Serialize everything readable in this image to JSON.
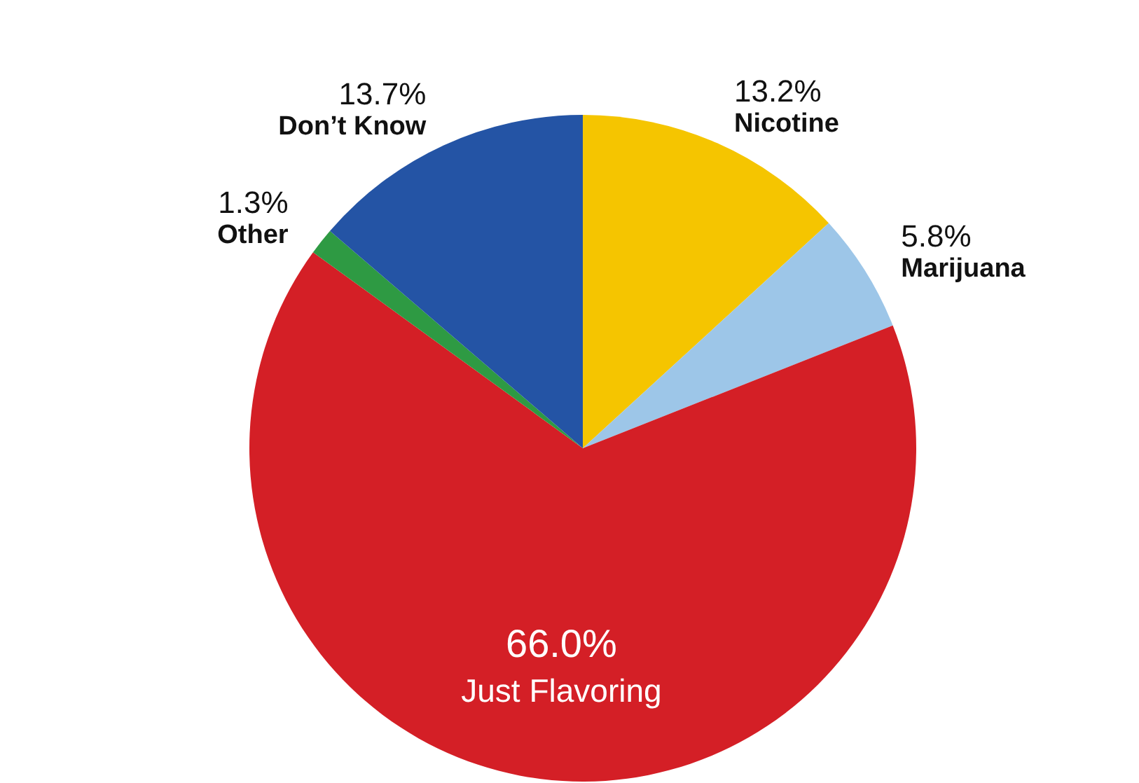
{
  "chart_data": {
    "type": "pie",
    "categories": [
      "Nicotine",
      "Marijuana",
      "Just Flavoring",
      "Other",
      "Don’t Know"
    ],
    "values": [
      13.2,
      5.8,
      66.0,
      1.3,
      13.7
    ],
    "colors": [
      "#f5c500",
      "#9dc6e8",
      "#d41f26",
      "#2e9a43",
      "#2454a5"
    ],
    "value_labels": [
      "13.2%",
      "5.8%",
      "66.0%",
      "1.3%",
      "13.7%"
    ]
  }
}
